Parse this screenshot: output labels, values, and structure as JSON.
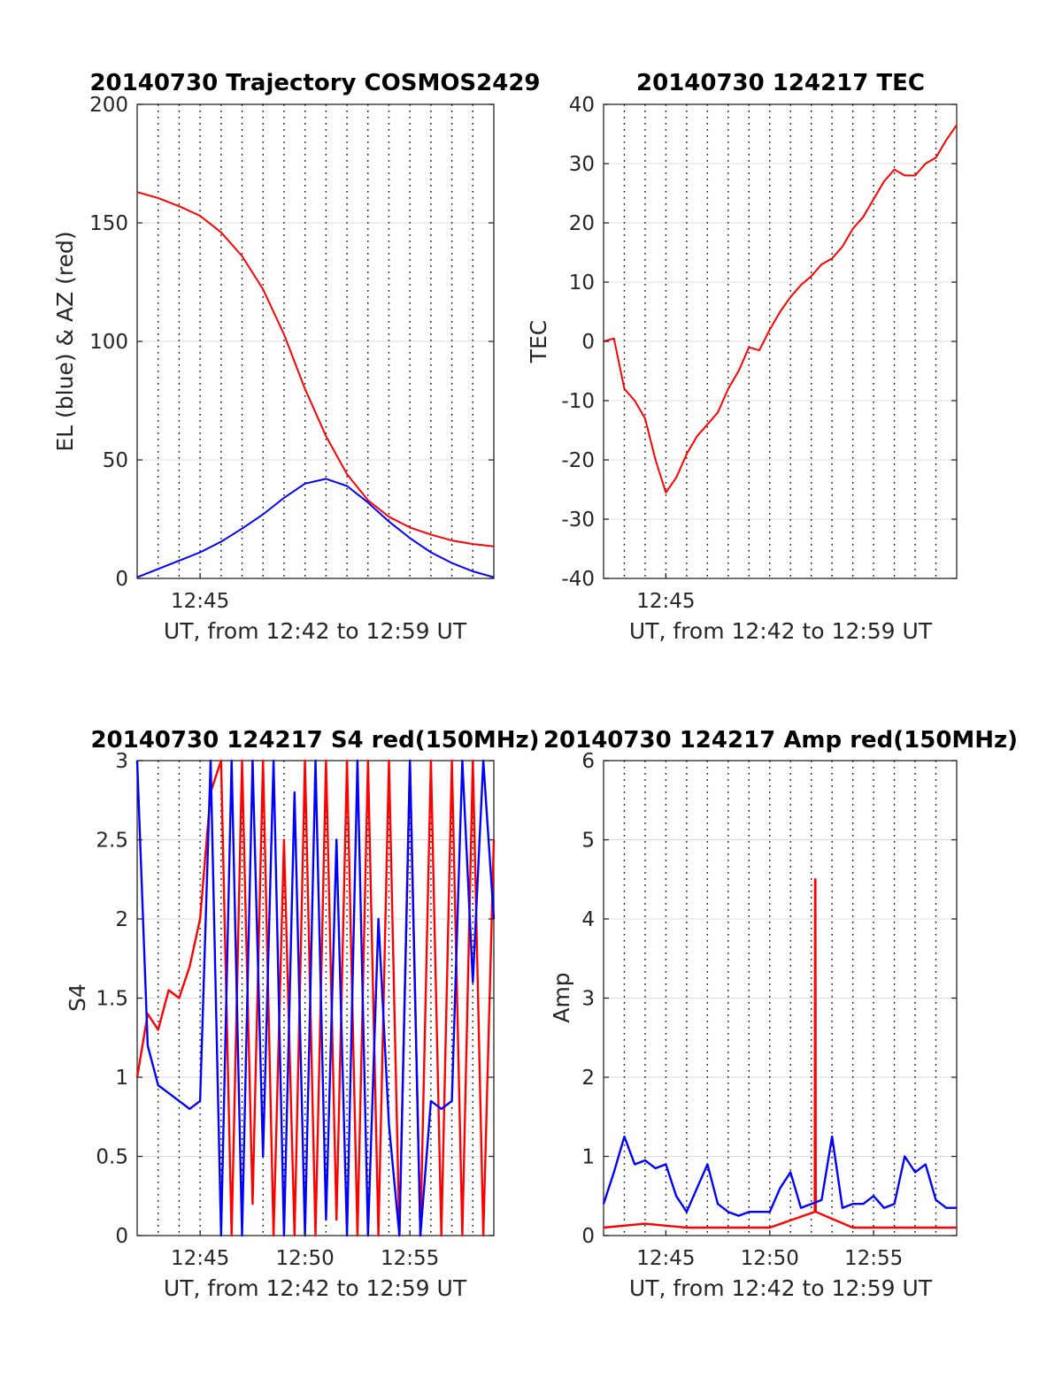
{
  "colors": {
    "el": "#0000ff",
    "az": "#ff0000",
    "tec": "#ff0000",
    "s4_red": "#ff0000",
    "s4_blue": "#0000ff",
    "amp_red": "#ff0000",
    "amp_blue": "#0000ff"
  },
  "chart_data": [
    {
      "id": "trajectory",
      "type": "line",
      "title": "20140730 Trajectory COSMOS2429",
      "xlabel": "UT, from 12:42 to 12:59 UT",
      "ylabel": "EL (blue) & AZ (red)",
      "xlim": [
        "12:42",
        "12:59"
      ],
      "ylim": [
        0,
        200
      ],
      "yticks": [
        0,
        50,
        100,
        150,
        200
      ],
      "xtick_labels": [
        "12:45"
      ],
      "xtick_times": [
        "12:45"
      ],
      "grid": "dotted vertical minute lines, light horizontal lines",
      "series": [
        {
          "color_key": "az",
          "x": [
            "12:42",
            "12:43",
            "12:44",
            "12:45",
            "12:46",
            "12:47",
            "12:48",
            "12:49",
            "12:50",
            "12:51",
            "12:52",
            "12:53",
            "12:54",
            "12:55",
            "12:56",
            "12:57",
            "12:58",
            "12:59"
          ],
          "y": [
            163,
            160.5,
            157,
            153,
            146,
            136,
            122,
            103,
            80,
            60,
            44,
            33,
            26,
            21.5,
            18.5,
            16,
            14.5,
            13.5
          ]
        },
        {
          "color_key": "el",
          "x": [
            "12:42",
            "12:43",
            "12:44",
            "12:45",
            "12:46",
            "12:47",
            "12:48",
            "12:49",
            "12:50",
            "12:51",
            "12:52",
            "12:53",
            "12:54",
            "12:55",
            "12:56",
            "12:57",
            "12:58",
            "12:59"
          ],
          "y": [
            0.5,
            4,
            7.5,
            11,
            15.5,
            21,
            27,
            34,
            40,
            42,
            39,
            32,
            24,
            17,
            11,
            6.5,
            3,
            0.5
          ]
        }
      ]
    },
    {
      "id": "tec",
      "type": "line",
      "title": "20140730 124217 TEC",
      "xlabel": "UT, from 12:42 to 12:59 UT",
      "ylabel": "TEC",
      "xlim": [
        "12:42",
        "12:59"
      ],
      "ylim": [
        -40,
        40
      ],
      "yticks": [
        -40,
        -30,
        -20,
        -10,
        0,
        10,
        20,
        30,
        40
      ],
      "xtick_labels": [
        "12:45"
      ],
      "xtick_times": [
        "12:45"
      ],
      "grid": "dotted vertical minute lines, light horizontal lines",
      "series": [
        {
          "color_key": "tec",
          "x": [
            "12:42",
            "12:42:30",
            "12:43",
            "12:43:30",
            "12:44",
            "12:44:30",
            "12:45",
            "12:45:30",
            "12:46",
            "12:46:30",
            "12:47",
            "12:47:30",
            "12:48",
            "12:48:30",
            "12:49",
            "12:49:30",
            "12:50",
            "12:50:30",
            "12:51",
            "12:51:30",
            "12:52",
            "12:52:30",
            "12:53",
            "12:53:30",
            "12:54",
            "12:54:30",
            "12:55",
            "12:55:30",
            "12:56",
            "12:56:30",
            "12:57",
            "12:57:30",
            "12:58",
            "12:58:30",
            "12:59"
          ],
          "y": [
            0,
            0.5,
            -8,
            -10,
            -13,
            -20,
            -25.5,
            -23,
            -19,
            -16,
            -14,
            -12,
            -8,
            -5,
            -1,
            -1.5,
            2,
            5,
            7.5,
            9.5,
            11,
            13,
            14,
            16,
            19,
            21,
            24,
            27,
            29,
            28,
            28,
            30,
            31,
            34,
            36.5
          ]
        }
      ]
    },
    {
      "id": "s4",
      "type": "line",
      "title": "20140730 124217 S4 red(150MHz)",
      "xlabel": "UT, from 12:42 to 12:59 UT",
      "ylabel": "S4",
      "xlim": [
        "12:42",
        "12:59"
      ],
      "ylim": [
        0,
        3
      ],
      "yticks": [
        0,
        0.5,
        1,
        1.5,
        2,
        2.5,
        3
      ],
      "xtick_labels": [
        "12:45",
        "12:50",
        "12:55"
      ],
      "xtick_times": [
        "12:45",
        "12:50",
        "12:55"
      ],
      "grid": "dotted vertical minute lines, light horizontal lines",
      "series": [
        {
          "color_key": "s4_red",
          "x": [
            "12:42",
            "12:42:30",
            "12:43",
            "12:43:30",
            "12:44",
            "12:44:30",
            "12:45",
            "12:45:30",
            "12:46",
            "12:46:30",
            "12:47",
            "12:47:30",
            "12:48",
            "12:48:30",
            "12:49",
            "12:49:30",
            "12:50",
            "12:50:30",
            "12:51",
            "12:51:30",
            "12:52",
            "12:52:30",
            "12:53",
            "12:53:30",
            "12:54",
            "12:54:30",
            "12:55",
            "12:55:30",
            "12:56",
            "12:56:30",
            "12:57",
            "12:57:30",
            "12:58",
            "12:58:30",
            "12:59"
          ],
          "y": [
            1.0,
            1.4,
            1.3,
            1.55,
            1.5,
            1.7,
            2.0,
            2.8,
            3.0,
            0.0,
            3.0,
            0.2,
            3.0,
            0.0,
            2.5,
            0.0,
            3.0,
            0.0,
            3.0,
            0.1,
            3.0,
            0.0,
            3.0,
            0.0,
            3.0,
            0.0,
            3.0,
            0.0,
            3.0,
            0.0,
            3.0,
            0.0,
            3.0,
            0.0,
            2.5
          ]
        },
        {
          "color_key": "s4_blue",
          "x": [
            "12:42",
            "12:42:30",
            "12:43",
            "12:43:30",
            "12:44",
            "12:44:30",
            "12:45",
            "12:45:30",
            "12:46",
            "12:46:30",
            "12:47",
            "12:47:30",
            "12:48",
            "12:48:30",
            "12:49",
            "12:49:30",
            "12:50",
            "12:50:30",
            "12:51",
            "12:51:30",
            "12:52",
            "12:52:30",
            "12:53",
            "12:53:30",
            "12:54",
            "12:54:30",
            "12:55",
            "12:55:30",
            "12:56",
            "12:56:30",
            "12:57",
            "12:57:30",
            "12:58",
            "12:58:30",
            "12:59"
          ],
          "y": [
            3.0,
            1.2,
            0.95,
            0.9,
            0.85,
            0.8,
            0.85,
            3.0,
            0.0,
            3.0,
            0.0,
            3.0,
            0.5,
            3.0,
            0.0,
            2.8,
            0.0,
            3.0,
            0.1,
            2.5,
            0.0,
            3.0,
            0.0,
            2.0,
            0.7,
            0.0,
            3.0,
            0.0,
            0.85,
            0.8,
            0.85,
            3.0,
            1.6,
            3.0,
            2.0
          ]
        }
      ]
    },
    {
      "id": "amp",
      "type": "line",
      "title": "20140730 124217 Amp red(150MHz)",
      "xlabel": "UT, from 12:42 to 12:59 UT",
      "ylabel": "Amp",
      "xlim": [
        "12:42",
        "12:59"
      ],
      "ylim": [
        0,
        6
      ],
      "yticks": [
        0,
        1,
        2,
        3,
        4,
        5,
        6
      ],
      "xtick_labels": [
        "12:45",
        "12:50",
        "12:55"
      ],
      "xtick_times": [
        "12:45",
        "12:50",
        "12:55"
      ],
      "grid": "dotted vertical minute lines, light horizontal lines",
      "series": [
        {
          "color_key": "amp_red",
          "x": [
            "12:42",
            "12:44",
            "12:46",
            "12:48",
            "12:50",
            "12:52:10",
            "12:52:11",
            "12:52:12",
            "12:52:13",
            "12:54",
            "12:56",
            "12:58",
            "12:59"
          ],
          "y": [
            0.1,
            0.15,
            0.1,
            0.1,
            0.1,
            0.3,
            4.5,
            4.5,
            0.3,
            0.1,
            0.1,
            0.1,
            0.1
          ]
        },
        {
          "color_key": "amp_blue",
          "x": [
            "12:42",
            "12:42:30",
            "12:43",
            "12:43:30",
            "12:44",
            "12:44:30",
            "12:45",
            "12:45:30",
            "12:46",
            "12:46:30",
            "12:47",
            "12:47:30",
            "12:48",
            "12:48:30",
            "12:49",
            "12:49:30",
            "12:50",
            "12:50:30",
            "12:51",
            "12:51:30",
            "12:52",
            "12:52:30",
            "12:53",
            "12:53:30",
            "12:54",
            "12:54:30",
            "12:55",
            "12:55:30",
            "12:56",
            "12:56:30",
            "12:57",
            "12:57:30",
            "12:58",
            "12:58:30",
            "12:59"
          ],
          "y": [
            0.4,
            0.8,
            1.25,
            0.9,
            0.95,
            0.85,
            0.9,
            0.5,
            0.3,
            0.6,
            0.9,
            0.4,
            0.3,
            0.25,
            0.3,
            0.3,
            0.3,
            0.6,
            0.8,
            0.35,
            0.4,
            0.45,
            1.25,
            0.35,
            0.4,
            0.4,
            0.5,
            0.35,
            0.4,
            1.0,
            0.8,
            0.9,
            0.45,
            0.35,
            0.35
          ]
        }
      ]
    }
  ]
}
